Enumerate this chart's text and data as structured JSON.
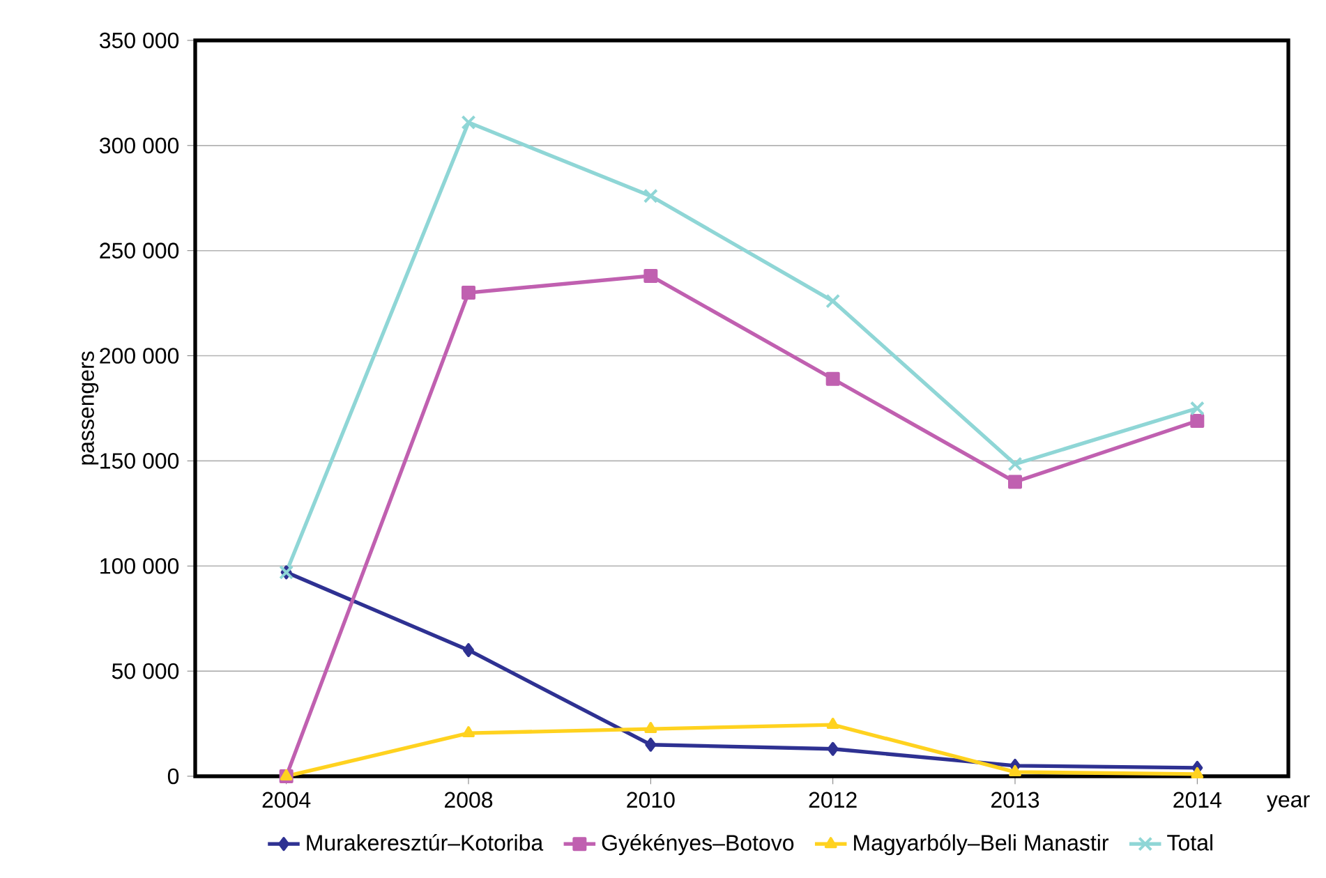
{
  "chart_data": {
    "type": "line",
    "xlabel": "year",
    "ylabel": "passengers",
    "categories": [
      "2004",
      "2008",
      "2010",
      "2012",
      "2013",
      "2014"
    ],
    "series": [
      {
        "name": "Murakeresztúr–Kotoriba",
        "color": "#2e3192",
        "marker": "diamond",
        "values": [
          97000,
          60000,
          15000,
          13000,
          5000,
          4000
        ]
      },
      {
        "name": "Gyékényes–Botovo",
        "color": "#c060b0",
        "marker": "square",
        "values": [
          0,
          230000,
          238000,
          189000,
          140000,
          169000
        ]
      },
      {
        "name": "Magyarbóly–Beli Manastir",
        "color": "#ffd21f",
        "marker": "triangle",
        "values": [
          0,
          20500,
          22500,
          24500,
          2000,
          1000
        ]
      },
      {
        "name": "Total",
        "color": "#8fd6d6",
        "marker": "cross",
        "values": [
          97000,
          311000,
          276000,
          226000,
          148500,
          175000
        ]
      }
    ],
    "ylim": [
      0,
      350000
    ],
    "yticks": [
      {
        "value": 0,
        "label": "0"
      },
      {
        "value": 50000,
        "label": "50 000"
      },
      {
        "value": 100000,
        "label": "100 000"
      },
      {
        "value": 150000,
        "label": "150 000"
      },
      {
        "value": 200000,
        "label": "200 000"
      },
      {
        "value": 250000,
        "label": "250 000"
      },
      {
        "value": 300000,
        "label": "300 000"
      },
      {
        "value": 350000,
        "label": "350 000"
      }
    ],
    "grid": "y",
    "legend": "bottom"
  }
}
